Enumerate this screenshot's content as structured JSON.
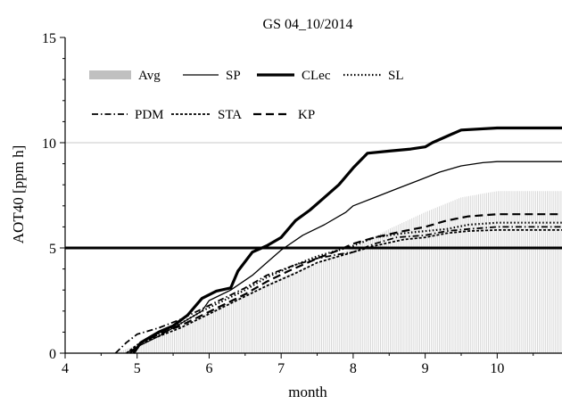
{
  "chart_data": {
    "type": "line",
    "title": "GS 04_10/2014",
    "xlabel": "month",
    "ylabel": "AOT40 [ppm h]",
    "xlim": [
      4,
      10.9
    ],
    "ylim": [
      0,
      15
    ],
    "x_ticks": [
      4,
      5,
      6,
      7,
      8,
      9,
      10
    ],
    "y_ticks": [
      0,
      5,
      10,
      15
    ],
    "gridlines_y": [
      5,
      10
    ],
    "threshold": {
      "y": 5
    },
    "legend": {
      "placement": "top-left, two rows"
    },
    "series": [
      {
        "name": "Avg",
        "style": "bar-fill",
        "color": "#c0c0c0",
        "points": [
          [
            4.7,
            0
          ],
          [
            5,
            0.4
          ],
          [
            5.5,
            1.1
          ],
          [
            5.8,
            1.6
          ],
          [
            6,
            2.0
          ],
          [
            6.5,
            2.8
          ],
          [
            7,
            3.6
          ],
          [
            7.5,
            4.3
          ],
          [
            8,
            5.0
          ],
          [
            8.5,
            5.9
          ],
          [
            9,
            6.7
          ],
          [
            9.5,
            7.4
          ],
          [
            10,
            7.7
          ],
          [
            10.9,
            7.7
          ]
        ]
      },
      {
        "name": "SP",
        "style": "solid-thin",
        "color": "#000000",
        "points": [
          [
            4.85,
            0
          ],
          [
            5,
            0.3
          ],
          [
            5.3,
            0.8
          ],
          [
            5.6,
            1.4
          ],
          [
            5.9,
            2.0
          ],
          [
            6,
            2.5
          ],
          [
            6.3,
            3.0
          ],
          [
            6.6,
            3.7
          ],
          [
            6.8,
            4.3
          ],
          [
            7,
            4.9
          ],
          [
            7.3,
            5.6
          ],
          [
            7.6,
            6.1
          ],
          [
            7.9,
            6.7
          ],
          [
            8,
            7.0
          ],
          [
            8.3,
            7.4
          ],
          [
            8.6,
            7.8
          ],
          [
            8.9,
            8.2
          ],
          [
            9.2,
            8.6
          ],
          [
            9.5,
            8.9
          ],
          [
            9.8,
            9.05
          ],
          [
            10,
            9.1
          ],
          [
            10.9,
            9.1
          ]
        ]
      },
      {
        "name": "CLec",
        "style": "solid-thick",
        "color": "#000000",
        "points": [
          [
            4.95,
            0
          ],
          [
            5.05,
            0.5
          ],
          [
            5.3,
            1.0
          ],
          [
            5.5,
            1.3
          ],
          [
            5.7,
            1.8
          ],
          [
            5.9,
            2.6
          ],
          [
            6.1,
            2.95
          ],
          [
            6.3,
            3.1
          ],
          [
            6.4,
            3.9
          ],
          [
            6.6,
            4.8
          ],
          [
            6.8,
            5.1
          ],
          [
            7,
            5.5
          ],
          [
            7.2,
            6.3
          ],
          [
            7.4,
            6.8
          ],
          [
            7.6,
            7.4
          ],
          [
            7.8,
            8.0
          ],
          [
            8,
            8.8
          ],
          [
            8.2,
            9.5
          ],
          [
            8.5,
            9.6
          ],
          [
            8.8,
            9.7
          ],
          [
            9,
            9.8
          ],
          [
            9.1,
            10.0
          ],
          [
            9.3,
            10.3
          ],
          [
            9.5,
            10.6
          ],
          [
            10,
            10.7
          ],
          [
            10.9,
            10.7
          ]
        ]
      },
      {
        "name": "SL",
        "style": "dotted",
        "color": "#000000",
        "points": [
          [
            4.95,
            0
          ],
          [
            5.05,
            0.5
          ],
          [
            5.3,
            0.9
          ],
          [
            5.6,
            1.4
          ],
          [
            5.9,
            2.0
          ],
          [
            6.2,
            2.5
          ],
          [
            6.5,
            3.0
          ],
          [
            6.8,
            3.6
          ],
          [
            7.2,
            4.2
          ],
          [
            7.5,
            4.6
          ],
          [
            7.8,
            4.9
          ],
          [
            8,
            5.1
          ],
          [
            8.3,
            5.5
          ],
          [
            8.7,
            5.7
          ],
          [
            9,
            5.8
          ],
          [
            9.3,
            5.9
          ],
          [
            9.6,
            6.1
          ],
          [
            10,
            6.2
          ],
          [
            10.9,
            6.2
          ]
        ]
      },
      {
        "name": "PDM",
        "style": "dashdot",
        "color": "#000000",
        "points": [
          [
            4.7,
            0
          ],
          [
            4.85,
            0.5
          ],
          [
            5,
            0.9
          ],
          [
            5.3,
            1.2
          ],
          [
            5.6,
            1.6
          ],
          [
            5.9,
            2.1
          ],
          [
            6.2,
            2.6
          ],
          [
            6.5,
            3.1
          ],
          [
            6.8,
            3.7
          ],
          [
            7.2,
            4.2
          ],
          [
            7.5,
            4.5
          ],
          [
            7.8,
            4.7
          ],
          [
            8,
            4.8
          ],
          [
            8.3,
            5.2
          ],
          [
            8.6,
            5.5
          ],
          [
            9,
            5.6
          ],
          [
            9.3,
            5.8
          ],
          [
            9.6,
            5.9
          ],
          [
            10,
            6.0
          ],
          [
            10.9,
            6.0
          ]
        ]
      },
      {
        "name": "STA",
        "style": "dashed-short",
        "color": "#000000",
        "points": [
          [
            4.85,
            0
          ],
          [
            5,
            0.4
          ],
          [
            5.3,
            0.8
          ],
          [
            5.6,
            1.2
          ],
          [
            5.9,
            1.7
          ],
          [
            6.2,
            2.2
          ],
          [
            6.5,
            2.7
          ],
          [
            6.8,
            3.2
          ],
          [
            7.2,
            3.8
          ],
          [
            7.5,
            4.3
          ],
          [
            7.8,
            4.6
          ],
          [
            8,
            4.8
          ],
          [
            8.3,
            5.1
          ],
          [
            8.7,
            5.4
          ],
          [
            9,
            5.5
          ],
          [
            9.3,
            5.7
          ],
          [
            9.6,
            5.8
          ],
          [
            10,
            5.85
          ],
          [
            10.9,
            5.85
          ]
        ]
      },
      {
        "name": "KP",
        "style": "dashed-long",
        "color": "#000000",
        "points": [
          [
            4.9,
            0
          ],
          [
            5.05,
            0.5
          ],
          [
            5.3,
            0.9
          ],
          [
            5.6,
            1.3
          ],
          [
            5.9,
            1.8
          ],
          [
            6.2,
            2.3
          ],
          [
            6.5,
            2.8
          ],
          [
            6.8,
            3.4
          ],
          [
            7.1,
            3.9
          ],
          [
            7.5,
            4.5
          ],
          [
            7.8,
            4.9
          ],
          [
            8,
            5.2
          ],
          [
            8.3,
            5.5
          ],
          [
            8.7,
            5.8
          ],
          [
            9,
            6.0
          ],
          [
            9.3,
            6.3
          ],
          [
            9.6,
            6.5
          ],
          [
            10,
            6.6
          ],
          [
            10.9,
            6.6
          ]
        ]
      }
    ]
  }
}
